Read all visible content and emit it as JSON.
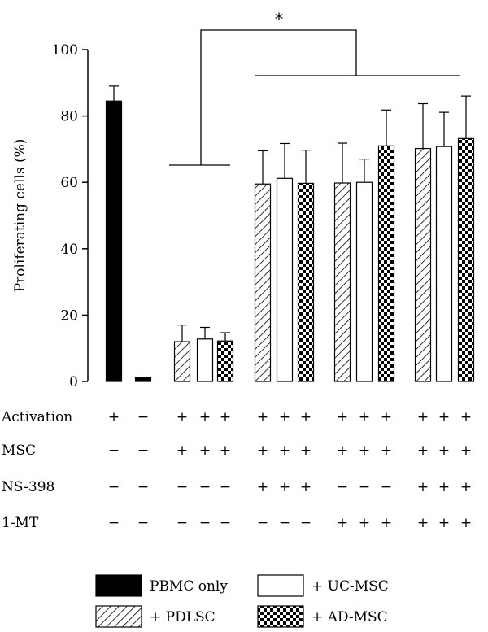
{
  "chart_data": {
    "type": "bar",
    "ylabel": "Proliferating cells (%)",
    "ylim": [
      0,
      100
    ],
    "yticks": [
      "0",
      "20",
      "40",
      "60",
      "80",
      "100"
    ],
    "significance_label": "*",
    "legend_position": "bottom",
    "legend": [
      {
        "key": "pbmc",
        "label": "PBMC only",
        "fill": "black"
      },
      {
        "key": "uc",
        "label": "+ UC-MSC",
        "fill": "white"
      },
      {
        "key": "pdlsc",
        "label": "+ PDLSC",
        "fill": "hatch"
      },
      {
        "key": "ad",
        "label": "+ AD-MSC",
        "fill": "checker"
      }
    ],
    "bars": [
      {
        "key": "pbmc",
        "value": 84.5,
        "error": 4.5
      },
      {
        "key": "pbmc",
        "value": 1.2,
        "error": 0.3
      },
      {
        "key": "pdlsc",
        "value": 12.0,
        "error": 5.0
      },
      {
        "key": "uc",
        "value": 12.8,
        "error": 3.5
      },
      {
        "key": "ad",
        "value": 12.2,
        "error": 2.5
      },
      {
        "key": "pdlsc",
        "value": 59.5,
        "error": 10.0
      },
      {
        "key": "uc",
        "value": 61.2,
        "error": 10.5
      },
      {
        "key": "ad",
        "value": 59.7,
        "error": 10.0
      },
      {
        "key": "pdlsc",
        "value": 59.8,
        "error": 12.0
      },
      {
        "key": "uc",
        "value": 60.0,
        "error": 7.0
      },
      {
        "key": "ad",
        "value": 71.0,
        "error": 10.8
      },
      {
        "key": "pdlsc",
        "value": 70.2,
        "error": 13.5
      },
      {
        "key": "uc",
        "value": 70.8,
        "error": 10.3
      },
      {
        "key": "ad",
        "value": 73.2,
        "error": 12.8
      }
    ],
    "condition_rows": [
      {
        "label": "Activation",
        "values": [
          "+",
          "−",
          "+",
          "+",
          "+",
          "+",
          "+",
          "+",
          "+",
          "+",
          "+",
          "+",
          "+",
          "+"
        ]
      },
      {
        "label": "MSC",
        "values": [
          "−",
          "−",
          "+",
          "+",
          "+",
          "+",
          "+",
          "+",
          "+",
          "+",
          "+",
          "+",
          "+",
          "+"
        ]
      },
      {
        "label": "NS-398",
        "values": [
          "−",
          "−",
          "−",
          "−",
          "−",
          "+",
          "+",
          "+",
          "−",
          "−",
          "−",
          "+",
          "+",
          "+"
        ]
      },
      {
        "label": "1-MT",
        "values": [
          "−",
          "−",
          "−",
          "−",
          "−",
          "−",
          "−",
          "−",
          "+",
          "+",
          "+",
          "+",
          "+",
          "+"
        ]
      }
    ]
  }
}
